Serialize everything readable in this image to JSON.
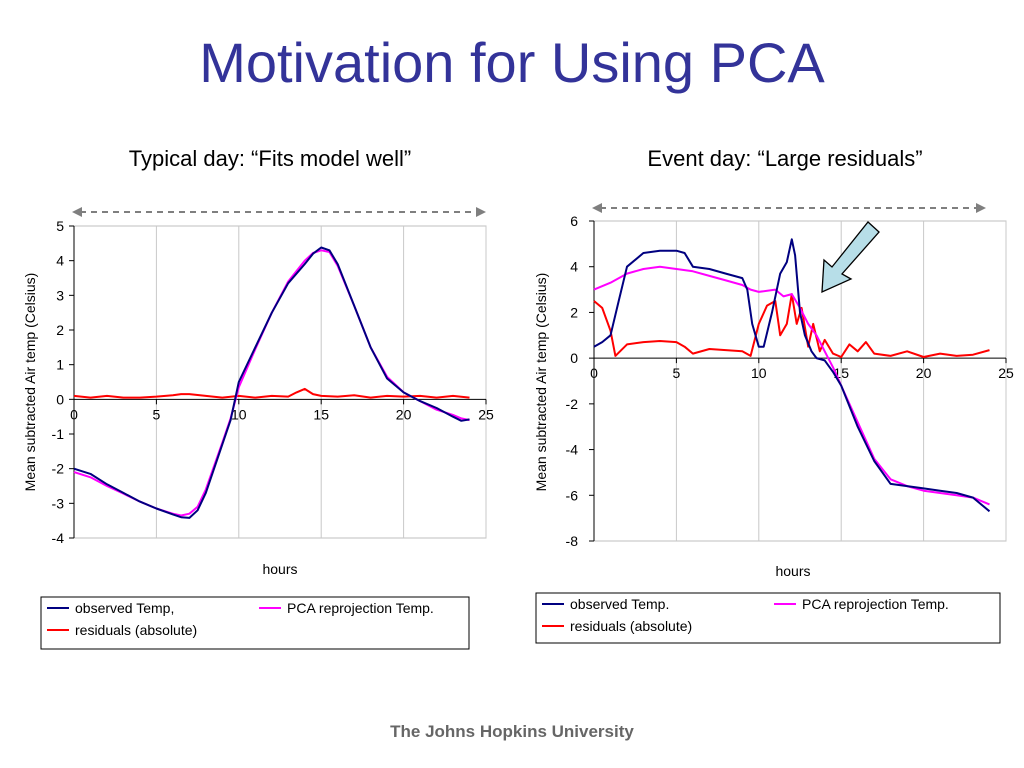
{
  "slide": {
    "title": "Motivation for Using PCA",
    "footer": "The Johns Hopkins University"
  },
  "chart_data": [
    {
      "type": "line",
      "subtitle": "Typical day: “Fits model well”",
      "xlabel": "hours",
      "ylabel": "Mean subtracted Air temp (Celsius)",
      "xlim": [
        0,
        25
      ],
      "ylim": [
        -4,
        5
      ],
      "x_ticks": [
        0,
        5,
        10,
        15,
        20,
        25
      ],
      "y_ticks": [
        -4,
        -3,
        -2,
        -1,
        0,
        1,
        2,
        3,
        4,
        5
      ],
      "grid": "vertical",
      "legend_position": "bottom",
      "series": [
        {
          "name": "observed Temp,",
          "color": "#000080",
          "x": [
            0,
            1,
            2,
            3,
            4,
            5,
            6,
            6.5,
            7,
            7.5,
            8,
            9,
            9.5,
            10,
            11,
            12,
            13,
            14,
            14.5,
            15,
            15.5,
            16,
            17,
            18,
            19,
            20,
            21,
            22,
            23,
            23.5,
            24
          ],
          "y": [
            -2.0,
            -2.15,
            -2.45,
            -2.7,
            -2.95,
            -3.15,
            -3.32,
            -3.4,
            -3.42,
            -3.2,
            -2.7,
            -1.3,
            -0.6,
            0.5,
            1.5,
            2.5,
            3.35,
            3.9,
            4.2,
            4.38,
            4.3,
            3.9,
            2.7,
            1.5,
            0.6,
            0.2,
            -0.05,
            -0.25,
            -0.5,
            -0.62,
            -0.58
          ]
        },
        {
          "name": "PCA reprojection Temp.",
          "color": "#ff00ff",
          "x": [
            0,
            1,
            2,
            3,
            4,
            5,
            6,
            6.5,
            7,
            7.5,
            8,
            9,
            9.5,
            10,
            11,
            12,
            13,
            14,
            14.5,
            15,
            15.5,
            16,
            17,
            18,
            19,
            20,
            21,
            22,
            23,
            23.5,
            24
          ],
          "y": [
            -2.1,
            -2.25,
            -2.5,
            -2.72,
            -2.95,
            -3.15,
            -3.3,
            -3.35,
            -3.3,
            -3.1,
            -2.6,
            -1.25,
            -0.55,
            0.35,
            1.45,
            2.5,
            3.4,
            4.0,
            4.22,
            4.3,
            4.25,
            3.85,
            2.7,
            1.5,
            0.65,
            0.2,
            -0.05,
            -0.3,
            -0.45,
            -0.55,
            -0.6
          ]
        },
        {
          "name": "residuals (absolute)",
          "color": "#ff0000",
          "x": [
            0,
            1,
            2,
            3,
            4,
            5,
            6,
            6.5,
            7,
            8,
            9,
            10,
            11,
            12,
            13,
            13.5,
            14,
            14.5,
            15,
            16,
            17,
            18,
            19,
            20,
            21,
            22,
            23,
            24
          ],
          "y": [
            0.1,
            0.05,
            0.1,
            0.05,
            0.05,
            0.08,
            0.12,
            0.15,
            0.15,
            0.1,
            0.05,
            0.1,
            0.05,
            0.1,
            0.08,
            0.2,
            0.3,
            0.15,
            0.1,
            0.08,
            0.12,
            0.05,
            0.1,
            0.08,
            0.1,
            0.05,
            0.1,
            0.05
          ]
        }
      ]
    },
    {
      "type": "line",
      "subtitle": "Event day: “Large residuals”",
      "xlabel": "hours",
      "ylabel": "Mean subtracted Air temp (Celsius)",
      "xlim": [
        0,
        25
      ],
      "ylim": [
        -8,
        6
      ],
      "x_ticks": [
        0,
        5,
        10,
        15,
        20,
        25
      ],
      "y_ticks": [
        -8,
        -6,
        -4,
        -2,
        0,
        2,
        4,
        6
      ],
      "grid": "vertical",
      "legend_position": "bottom",
      "series": [
        {
          "name": "observed Temp.",
          "color": "#000080",
          "x": [
            0,
            0.5,
            1,
            1.5,
            2,
            3,
            4,
            5,
            5.5,
            6,
            7,
            8,
            9,
            9.3,
            9.6,
            10,
            10.3,
            10.8,
            11.3,
            11.7,
            12,
            12.2,
            12.5,
            12.8,
            13.2,
            13.5,
            14,
            14.5,
            15,
            16,
            17,
            18,
            19,
            20,
            21,
            22,
            23,
            24
          ],
          "y": [
            0.5,
            0.7,
            1.0,
            2.5,
            4.0,
            4.6,
            4.7,
            4.7,
            4.6,
            4.0,
            3.9,
            3.7,
            3.5,
            3.0,
            1.5,
            0.5,
            0.5,
            2.0,
            3.7,
            4.2,
            5.2,
            4.5,
            2.0,
            1.0,
            0.3,
            0.0,
            -0.1,
            -0.6,
            -1.2,
            -3.0,
            -4.5,
            -5.5,
            -5.6,
            -5.7,
            -5.8,
            -5.9,
            -6.1,
            -6.7
          ]
        },
        {
          "name": "PCA reprojection Temp.",
          "color": "#ff00ff",
          "x": [
            0,
            1,
            2,
            3,
            4,
            5,
            6,
            7,
            8,
            9,
            9.5,
            10,
            11,
            11.5,
            12,
            12.5,
            13,
            13.5,
            14,
            14.5,
            15,
            16,
            17,
            18,
            19,
            20,
            21,
            22,
            23,
            24
          ],
          "y": [
            3.0,
            3.3,
            3.7,
            3.9,
            4.0,
            3.9,
            3.8,
            3.6,
            3.4,
            3.2,
            3.0,
            2.9,
            3.0,
            2.7,
            2.8,
            2.2,
            1.5,
            1.0,
            0.3,
            -0.4,
            -1.2,
            -2.8,
            -4.4,
            -5.3,
            -5.6,
            -5.8,
            -5.9,
            -6.0,
            -6.1,
            -6.4
          ]
        },
        {
          "name": "residuals (absolute)",
          "color": "#ff0000",
          "x": [
            0,
            0.5,
            1,
            1.3,
            2,
            3,
            4,
            5,
            5.5,
            6,
            7,
            8,
            9,
            9.5,
            10,
            10.5,
            11,
            11.3,
            11.7,
            12,
            12.3,
            12.6,
            13,
            13.3,
            13.7,
            14,
            14.5,
            15,
            15.5,
            16,
            16.5,
            17,
            18,
            19,
            20,
            21,
            22,
            23,
            24
          ],
          "y": [
            2.5,
            2.2,
            1.2,
            0.1,
            0.6,
            0.7,
            0.75,
            0.7,
            0.5,
            0.2,
            0.4,
            0.35,
            0.3,
            0.1,
            1.5,
            2.3,
            2.5,
            1.0,
            1.5,
            2.8,
            1.5,
            2.2,
            0.5,
            1.5,
            0.3,
            0.8,
            0.2,
            0.05,
            0.6,
            0.3,
            0.7,
            0.2,
            0.1,
            0.3,
            0.05,
            0.2,
            0.1,
            0.15,
            0.35
          ]
        }
      ]
    }
  ]
}
